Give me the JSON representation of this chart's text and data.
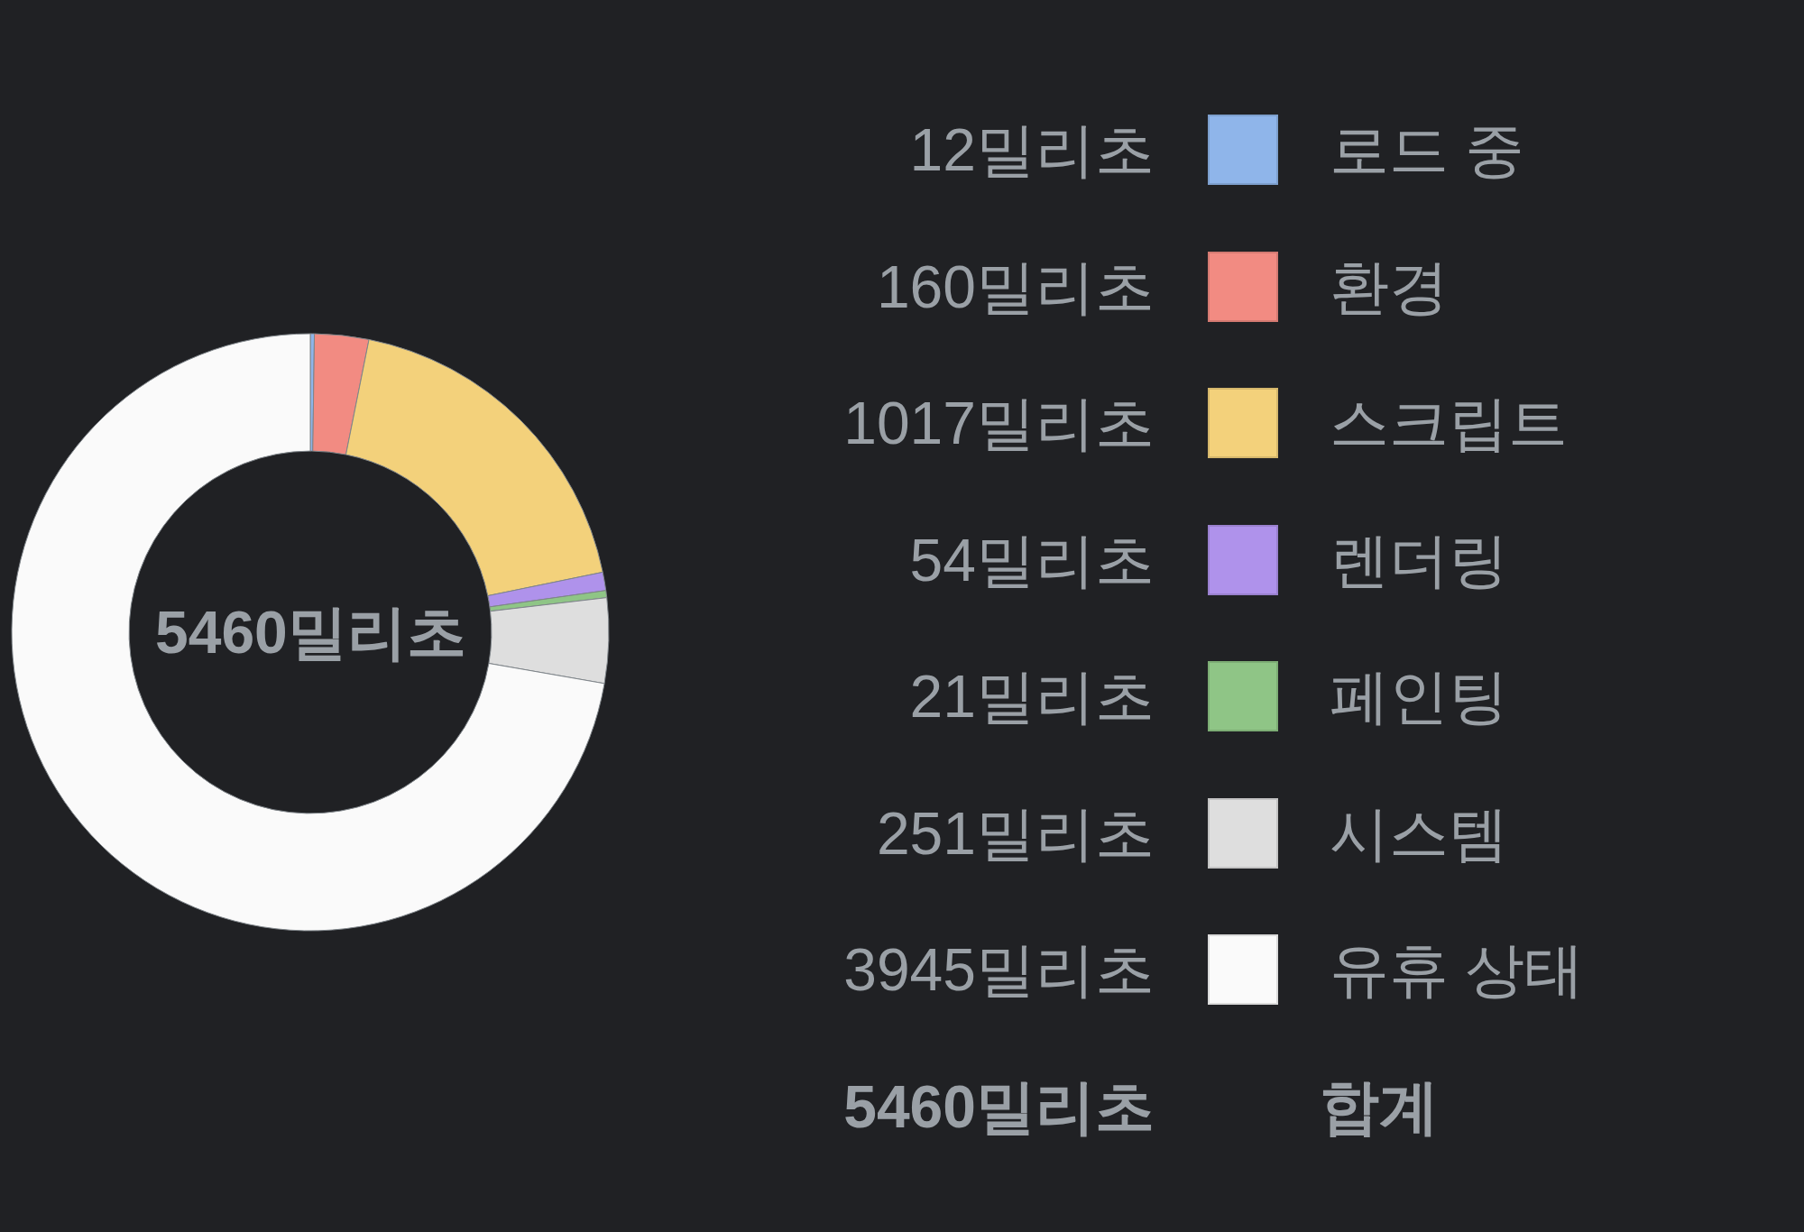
{
  "chart_data": {
    "type": "donut",
    "categories": [
      "로드 중",
      "환경",
      "스크립트",
      "렌더링",
      "페인팅",
      "시스템",
      "유휴 상태"
    ],
    "values": [
      12,
      160,
      1017,
      54,
      21,
      251,
      3945
    ],
    "colors": [
      "#8fb5ea",
      "#f28b82",
      "#f3d17b",
      "#af92eb",
      "#8fc586",
      "#dedede",
      "#fafafa"
    ],
    "value_labels": [
      "12밀리초",
      "160밀리초",
      "1017밀리초",
      "54밀리초",
      "21밀리초",
      "251밀리초",
      "3945밀리초"
    ],
    "totals": [
      "5460밀리초"
    ],
    "annotations": [
      "합계"
    ],
    "legend": "right"
  }
}
